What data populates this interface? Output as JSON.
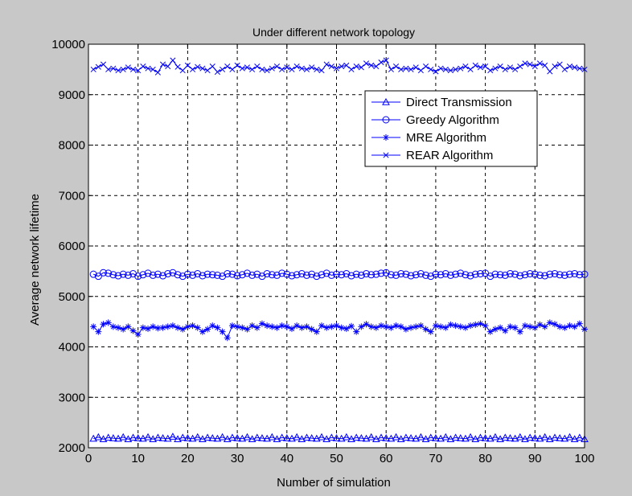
{
  "colors": {
    "background": "#c8c8c8",
    "axes_bg": "#ffffff",
    "series": "#0000ff",
    "grid": "#000000"
  },
  "chart_data": {
    "type": "line",
    "title": "Under different network topology",
    "xlabel": "Number of simulation",
    "ylabel": "Average network lifetime",
    "xlim": [
      0,
      100
    ],
    "ylim": [
      2000,
      10000
    ],
    "xticks": [
      0,
      10,
      20,
      30,
      40,
      50,
      60,
      70,
      80,
      90,
      100
    ],
    "yticks": [
      2000,
      3000,
      4000,
      5000,
      6000,
      7000,
      8000,
      9000,
      10000
    ],
    "grid": true,
    "legend_position": "top-right",
    "x": [
      1,
      2,
      3,
      4,
      5,
      6,
      7,
      8,
      9,
      10,
      11,
      12,
      13,
      14,
      15,
      16,
      17,
      18,
      19,
      20,
      21,
      22,
      23,
      24,
      25,
      26,
      27,
      28,
      29,
      30,
      31,
      32,
      33,
      34,
      35,
      36,
      37,
      38,
      39,
      40,
      41,
      42,
      43,
      44,
      45,
      46,
      47,
      48,
      49,
      50,
      51,
      52,
      53,
      54,
      55,
      56,
      57,
      58,
      59,
      60,
      61,
      62,
      63,
      64,
      65,
      66,
      67,
      68,
      69,
      70,
      71,
      72,
      73,
      74,
      75,
      76,
      77,
      78,
      79,
      80,
      81,
      82,
      83,
      84,
      85,
      86,
      87,
      88,
      89,
      90,
      91,
      92,
      93,
      94,
      95,
      96,
      97,
      98,
      99,
      100
    ],
    "series": [
      {
        "name": "Direct Transmission",
        "marker": "triangle",
        "values": [
          2180,
          2210,
          2170,
          2200,
          2190,
          2180,
          2210,
          2170,
          2200,
          2190,
          2180,
          2210,
          2170,
          2200,
          2190,
          2180,
          2220,
          2170,
          2200,
          2190,
          2180,
          2210,
          2170,
          2200,
          2190,
          2180,
          2210,
          2170,
          2200,
          2190,
          2180,
          2210,
          2170,
          2200,
          2190,
          2180,
          2210,
          2170,
          2200,
          2190,
          2180,
          2210,
          2170,
          2200,
          2190,
          2180,
          2210,
          2170,
          2200,
          2190,
          2180,
          2210,
          2170,
          2200,
          2190,
          2180,
          2210,
          2170,
          2200,
          2190,
          2180,
          2210,
          2170,
          2200,
          2190,
          2180,
          2210,
          2170,
          2200,
          2190,
          2180,
          2210,
          2170,
          2200,
          2190,
          2180,
          2210,
          2170,
          2200,
          2190,
          2180,
          2210,
          2170,
          2200,
          2190,
          2180,
          2210,
          2170,
          2200,
          2190,
          2180,
          2210,
          2170,
          2200,
          2190,
          2180,
          2210,
          2170,
          2200,
          2170
        ]
      },
      {
        "name": "Greedy Algorithm",
        "marker": "circle",
        "values": [
          5440,
          5400,
          5470,
          5460,
          5430,
          5410,
          5440,
          5420,
          5450,
          5400,
          5430,
          5460,
          5420,
          5440,
          5410,
          5450,
          5470,
          5430,
          5400,
          5440,
          5420,
          5450,
          5410,
          5440,
          5430,
          5420,
          5400,
          5450,
          5440,
          5410,
          5430,
          5460,
          5420,
          5440,
          5400,
          5450,
          5430,
          5420,
          5460,
          5440,
          5410,
          5430,
          5450,
          5420,
          5440,
          5400,
          5430,
          5460,
          5420,
          5440,
          5430,
          5450,
          5410,
          5440,
          5420,
          5450,
          5430,
          5440,
          5460,
          5470,
          5430,
          5420,
          5450,
          5440,
          5410,
          5430,
          5450,
          5420,
          5400,
          5440,
          5430,
          5450,
          5420,
          5440,
          5460,
          5430,
          5410,
          5440,
          5450,
          5460,
          5400,
          5440,
          5430,
          5420,
          5450,
          5440,
          5410,
          5430,
          5450,
          5440,
          5420,
          5410,
          5440,
          5450,
          5430,
          5420,
          5440,
          5450,
          5430,
          5440
        ]
      },
      {
        "name": "MRE Algorithm",
        "marker": "star",
        "values": [
          4400,
          4300,
          4450,
          4480,
          4400,
          4380,
          4350,
          4400,
          4320,
          4250,
          4380,
          4360,
          4400,
          4370,
          4380,
          4400,
          4420,
          4380,
          4350,
          4400,
          4420,
          4380,
          4300,
          4350,
          4420,
          4380,
          4300,
          4180,
          4420,
          4400,
          4380,
          4350,
          4420,
          4380,
          4460,
          4420,
          4400,
          4380,
          4420,
          4400,
          4360,
          4420,
          4380,
          4400,
          4350,
          4300,
          4420,
          4380,
          4400,
          4420,
          4380,
          4360,
          4410,
          4300,
          4400,
          4450,
          4400,
          4380,
          4420,
          4400,
          4380,
          4420,
          4400,
          4350,
          4380,
          4400,
          4420,
          4350,
          4300,
          4420,
          4400,
          4380,
          4440,
          4420,
          4400,
          4380,
          4420,
          4440,
          4460,
          4420,
          4300,
          4350,
          4380,
          4320,
          4400,
          4380,
          4300,
          4420,
          4400,
          4380,
          4440,
          4400,
          4480,
          4450,
          4400,
          4380,
          4420,
          4400,
          4460,
          4350
        ]
      },
      {
        "name": "REAR Algorithm",
        "marker": "x",
        "values": [
          9500,
          9550,
          9600,
          9500,
          9520,
          9480,
          9500,
          9540,
          9500,
          9480,
          9560,
          9520,
          9500,
          9440,
          9600,
          9560,
          9680,
          9550,
          9480,
          9580,
          9500,
          9550,
          9520,
          9480,
          9560,
          9450,
          9500,
          9560,
          9500,
          9580,
          9520,
          9540,
          9500,
          9560,
          9500,
          9480,
          9520,
          9560,
          9500,
          9540,
          9500,
          9560,
          9520,
          9500,
          9540,
          9500,
          9480,
          9600,
          9560,
          9520,
          9560,
          9580,
          9500,
          9560,
          9540,
          9620,
          9580,
          9560,
          9640,
          9680,
          9500,
          9560,
          9500,
          9520,
          9500,
          9540,
          9480,
          9560,
          9500,
          9460,
          9520,
          9500,
          9480,
          9500,
          9520,
          9560,
          9500,
          9580,
          9540,
          9560,
          9480,
          9520,
          9560,
          9500,
          9540,
          9500,
          9560,
          9620,
          9600,
          9560,
          9620,
          9580,
          9460,
          9560,
          9600,
          9500,
          9560,
          9540,
          9520,
          9500
        ]
      }
    ]
  }
}
